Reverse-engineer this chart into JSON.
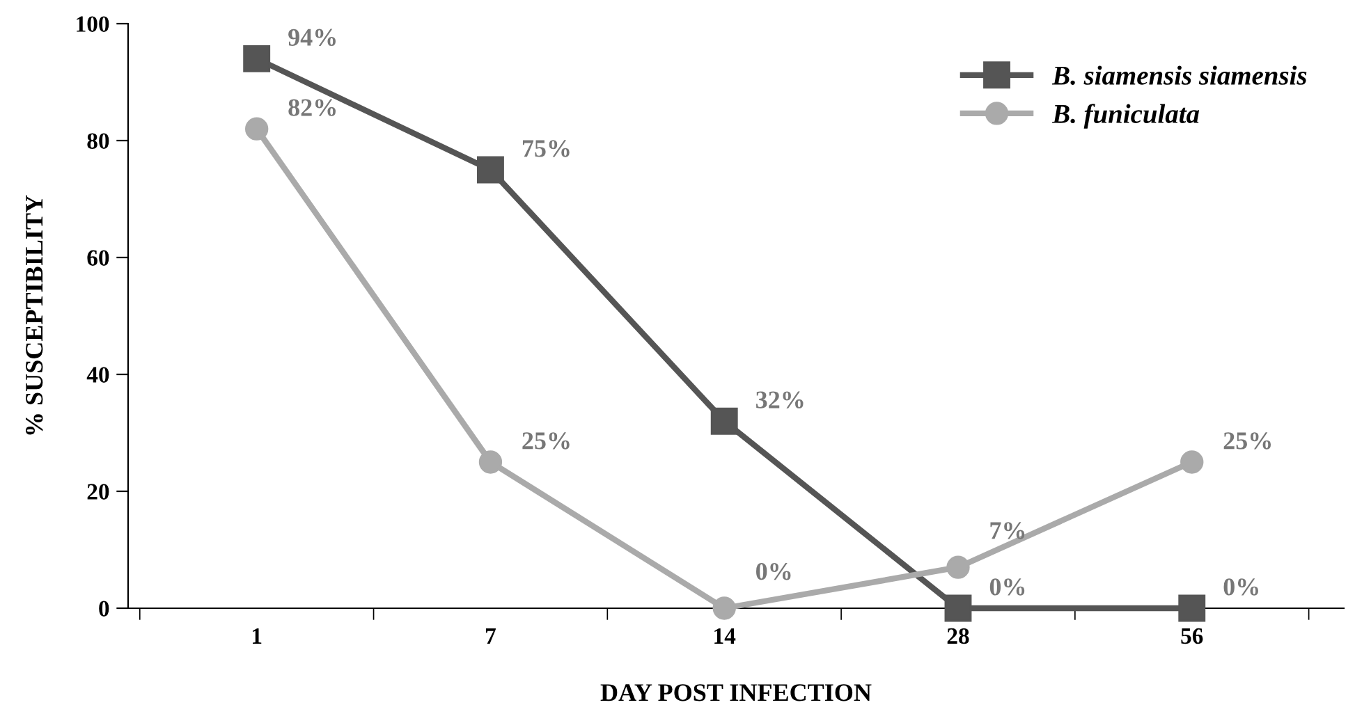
{
  "chart_data": {
    "type": "line",
    "xlabel": "DAY POST INFECTION",
    "ylabel": "% SUSCEPTIBILITY",
    "categories": [
      "1",
      "7",
      "14",
      "28",
      "56"
    ],
    "series": [
      {
        "name": "B. siamensis siamensis",
        "color": "#555555",
        "marker": "square",
        "values": [
          94,
          75,
          32,
          0,
          0
        ],
        "value_labels": [
          "94%",
          "75%",
          "32%",
          "0%",
          "0%"
        ]
      },
      {
        "name": "B. funiculata",
        "color": "#aaaaaa",
        "marker": "circle",
        "values": [
          82,
          25,
          0,
          7,
          25
        ],
        "value_labels": [
          "82%",
          "25%",
          "0%",
          "7%",
          "25%"
        ]
      }
    ],
    "ylim": [
      0,
      100
    ],
    "yticks": [
      0,
      20,
      40,
      60,
      80,
      100
    ],
    "grid": false,
    "legend": "top right",
    "line_style": "solid"
  }
}
